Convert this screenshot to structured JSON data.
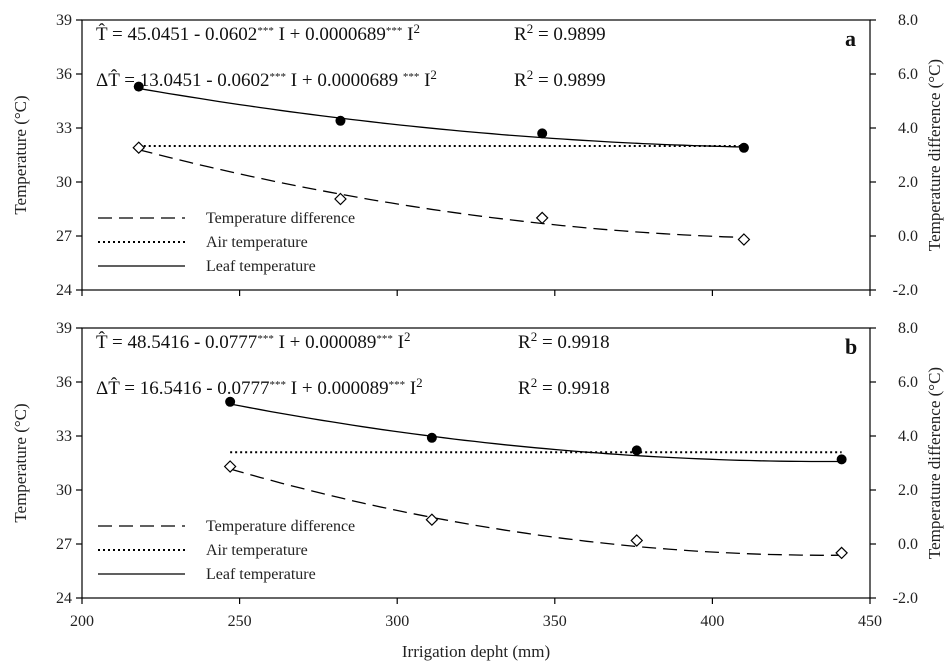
{
  "chart_data": {
    "type": "scatter",
    "xlabel": "Irrigation depht (mm)",
    "xlim": [
      200,
      450
    ],
    "xticks": [
      "200",
      "250",
      "300",
      "350",
      "400",
      "450"
    ],
    "ylabel_left": "Temperature (°C)",
    "ylim_left": [
      24,
      39
    ],
    "yticks_left": [
      "24",
      "27",
      "30",
      "33",
      "36",
      "39"
    ],
    "ylabel_right": "Temperature difference (°C)",
    "ylim_right": [
      -2,
      8
    ],
    "yticks_right": [
      "-2.0",
      "0.0",
      "2.0",
      "4.0",
      "6.0",
      "8.0"
    ],
    "legend": {
      "position": "lower-left",
      "entries": [
        "Temperature difference",
        "Air temperature",
        "Leaf temperature"
      ]
    },
    "panels": [
      {
        "label": "a",
        "eq1": {
          "lhs": "T̂ = 45.0451 - 0.0602",
          "sup1": "***",
          "mid": " I + 0.0000689",
          "sup2": "***",
          "tail": " I",
          "exp": "2",
          "r2": "R",
          "r2exp": "2",
          "r2val": " = 0.9899"
        },
        "eq2": {
          "lhs": "ΔT̂ = 13.0451 - 0.0602",
          "sup1": "***",
          "mid": " I + 0.0000689 ",
          "sup2": "***",
          "tail": " I",
          "exp": "2",
          "r2": "R",
          "r2exp": "2",
          "r2val": " = 0.9899"
        },
        "leaf": {
          "x": [
            218,
            282,
            346,
            410
          ],
          "y": [
            35.3,
            33.4,
            32.7,
            31.9
          ]
        },
        "leaf_fit": {
          "a": 45.0451,
          "b": -0.0602,
          "c": 6.89e-05,
          "x0": 218,
          "x1": 410
        },
        "air": {
          "x": [
            218,
            410
          ],
          "y": [
            32.0,
            32.0
          ]
        },
        "diff": {
          "x": [
            218,
            282,
            346,
            410
          ],
          "y": [
            3.27,
            1.37,
            0.67,
            -0.13
          ]
        },
        "diff_fit": {
          "a": 13.0451,
          "b": -0.0602,
          "c": 6.89e-05,
          "x0": 218,
          "x1": 410
        }
      },
      {
        "label": "b",
        "eq1": {
          "lhs": "T̂ = 48.5416 - 0.0777",
          "sup1": "***",
          "mid": " I + 0.000089",
          "sup2": "***",
          "tail": " I",
          "exp": "2",
          "r2": "R",
          "r2exp": "2",
          "r2val": " = 0.9918"
        },
        "eq2": {
          "lhs": "ΔT̂ = 16.5416 - 0.0777",
          "sup1": "***",
          "mid": " I + 0.000089",
          "sup2": "***",
          "tail": " I",
          "exp": "2",
          "r2": "R",
          "r2exp": "2",
          "r2val": " = 0.9918"
        },
        "leaf": {
          "x": [
            247,
            311,
            376,
            441
          ],
          "y": [
            34.9,
            32.9,
            32.2,
            31.7
          ]
        },
        "leaf_fit": {
          "a": 48.5416,
          "b": -0.0777,
          "c": 8.9e-05,
          "x0": 247,
          "x1": 441
        },
        "air": {
          "x": [
            247,
            441
          ],
          "y": [
            32.1,
            32.1
          ]
        },
        "diff": {
          "x": [
            247,
            311,
            376,
            441
          ],
          "y": [
            2.87,
            0.9,
            0.13,
            -0.33
          ]
        },
        "diff_fit": {
          "a": 16.5416,
          "b": -0.0777,
          "c": 8.9e-05,
          "x0": 247,
          "x1": 441
        }
      }
    ]
  }
}
